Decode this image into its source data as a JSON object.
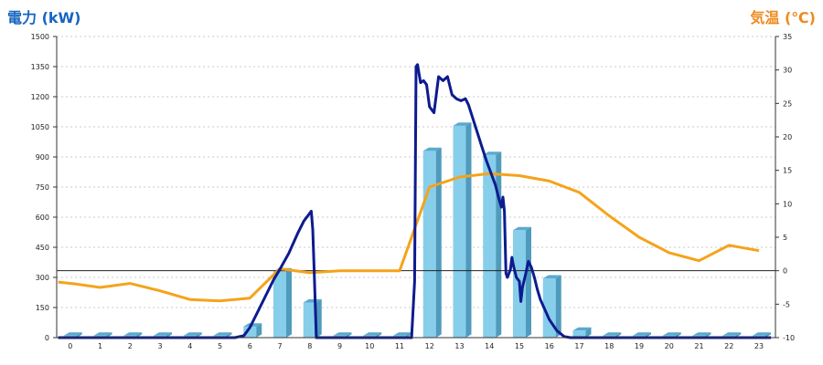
{
  "chart_data": {
    "type": "bar",
    "left_axis_title": "電力 (kW)",
    "right_axis_title": "気温 (℃)",
    "categories": [
      "0",
      "1",
      "2",
      "3",
      "4",
      "5",
      "6",
      "7",
      "8",
      "9",
      "10",
      "11",
      "12",
      "13",
      "14",
      "15",
      "16",
      "17",
      "18",
      "19",
      "20",
      "21",
      "22",
      "23"
    ],
    "left_ylim": [
      0,
      1500
    ],
    "left_ticks": [
      "0",
      "150",
      "300",
      "450",
      "600",
      "750",
      "900",
      "1050",
      "1200",
      "1350",
      "1500"
    ],
    "right_ylim": [
      -10,
      35
    ],
    "right_ticks": [
      "-10",
      "-5",
      "0",
      "5",
      "10",
      "15",
      "20",
      "25",
      "30",
      "35"
    ],
    "grid": true,
    "colors": {
      "bar": "#87ceeb",
      "bar_side": "#4f9bbd",
      "bar_top": "#5ba9cf",
      "power_line": "#0d1b8f",
      "temp_line": "#f5a31a",
      "left_title": "#1565c0",
      "right_title": "#ee8a1f"
    },
    "series": [
      {
        "kind": "bar",
        "axis": "left",
        "values": [
          10,
          10,
          10,
          10,
          10,
          10,
          55,
          330,
          175,
          10,
          10,
          10,
          930,
          1055,
          910,
          535,
          295,
          35,
          10,
          10,
          10,
          10,
          10,
          10
        ]
      },
      {
        "kind": "line",
        "axis": "left",
        "points": [
          [
            -0.4,
            0
          ],
          [
            5.5,
            0
          ],
          [
            5.8,
            10
          ],
          [
            6.0,
            50
          ],
          [
            6.2,
            110
          ],
          [
            6.5,
            200
          ],
          [
            6.8,
            290
          ],
          [
            7.0,
            340
          ],
          [
            7.3,
            420
          ],
          [
            7.6,
            520
          ],
          [
            7.8,
            580
          ],
          [
            8.05,
            630
          ],
          [
            8.1,
            540
          ],
          [
            8.15,
            330
          ],
          [
            8.22,
            0
          ],
          [
            11.4,
            0
          ],
          [
            11.5,
            280
          ],
          [
            11.55,
            1350
          ],
          [
            11.6,
            1360
          ],
          [
            11.7,
            1270
          ],
          [
            11.8,
            1280
          ],
          [
            11.9,
            1260
          ],
          [
            12.0,
            1150
          ],
          [
            12.15,
            1120
          ],
          [
            12.3,
            1300
          ],
          [
            12.45,
            1280
          ],
          [
            12.6,
            1300
          ],
          [
            12.75,
            1210
          ],
          [
            12.9,
            1190
          ],
          [
            13.05,
            1180
          ],
          [
            13.2,
            1190
          ],
          [
            13.3,
            1160
          ],
          [
            13.45,
            1090
          ],
          [
            13.6,
            1020
          ],
          [
            13.75,
            950
          ],
          [
            13.9,
            880
          ],
          [
            14.05,
            820
          ],
          [
            14.2,
            760
          ],
          [
            14.3,
            700
          ],
          [
            14.4,
            650
          ],
          [
            14.45,
            700
          ],
          [
            14.5,
            630
          ],
          [
            14.55,
            320
          ],
          [
            14.6,
            300
          ],
          [
            14.7,
            340
          ],
          [
            14.75,
            400
          ],
          [
            14.8,
            360
          ],
          [
            14.9,
            300
          ],
          [
            15.0,
            280
          ],
          [
            15.05,
            180
          ],
          [
            15.1,
            250
          ],
          [
            15.2,
            310
          ],
          [
            15.3,
            380
          ],
          [
            15.4,
            350
          ],
          [
            15.5,
            300
          ],
          [
            15.6,
            240
          ],
          [
            15.7,
            190
          ],
          [
            15.85,
            140
          ],
          [
            16.0,
            90
          ],
          [
            16.25,
            35
          ],
          [
            16.5,
            5
          ],
          [
            16.7,
            0
          ],
          [
            23.4,
            0
          ]
        ]
      },
      {
        "kind": "line",
        "axis": "right",
        "points": [
          [
            -0.4,
            -1.7
          ],
          [
            0.2,
            -2.0
          ],
          [
            1.0,
            -2.5
          ],
          [
            2.0,
            -1.9
          ],
          [
            3.0,
            -3.0
          ],
          [
            4.0,
            -4.3
          ],
          [
            5.0,
            -4.5
          ],
          [
            6.0,
            -4.1
          ],
          [
            7.0,
            0.3
          ],
          [
            8.0,
            -0.3
          ],
          [
            9.0,
            0.0
          ],
          [
            10.0,
            0.0
          ],
          [
            11.0,
            0.0
          ],
          [
            12.0,
            12.5
          ],
          [
            13.0,
            14.0
          ],
          [
            14.0,
            14.5
          ],
          [
            15.0,
            14.2
          ],
          [
            16.0,
            13.4
          ],
          [
            17.0,
            11.7
          ],
          [
            18.0,
            8.2
          ],
          [
            19.0,
            5.0
          ],
          [
            20.0,
            2.7
          ],
          [
            21.0,
            1.5
          ],
          [
            22.0,
            3.8
          ],
          [
            23.0,
            3.0
          ]
        ]
      }
    ]
  }
}
